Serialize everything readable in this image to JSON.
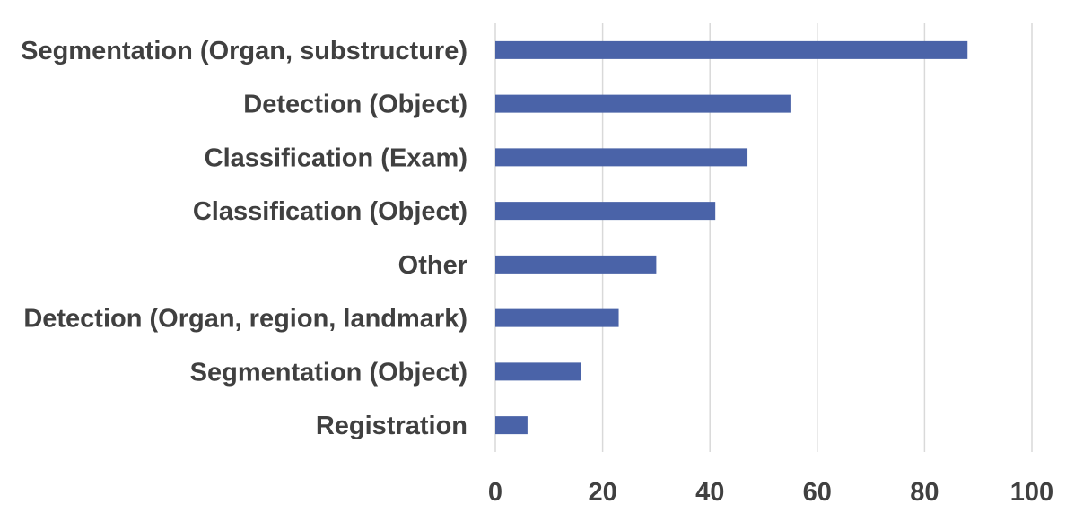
{
  "chart_data": {
    "type": "bar",
    "orientation": "horizontal",
    "categories": [
      "Segmentation (Organ, substructure)",
      "Detection (Object)",
      "Classification (Exam)",
      "Classification (Object)",
      "Other",
      "Detection (Organ, region, landmark)",
      "Segmentation (Object)",
      "Registration"
    ],
    "values": [
      88,
      55,
      47,
      41,
      30,
      23,
      16,
      6
    ],
    "xlim": [
      0,
      100
    ],
    "xticks": [
      0,
      20,
      40,
      60,
      80,
      100
    ],
    "grid": "vertical",
    "bar_color": "#4a63a8",
    "title": "",
    "xlabel": "",
    "ylabel": ""
  }
}
